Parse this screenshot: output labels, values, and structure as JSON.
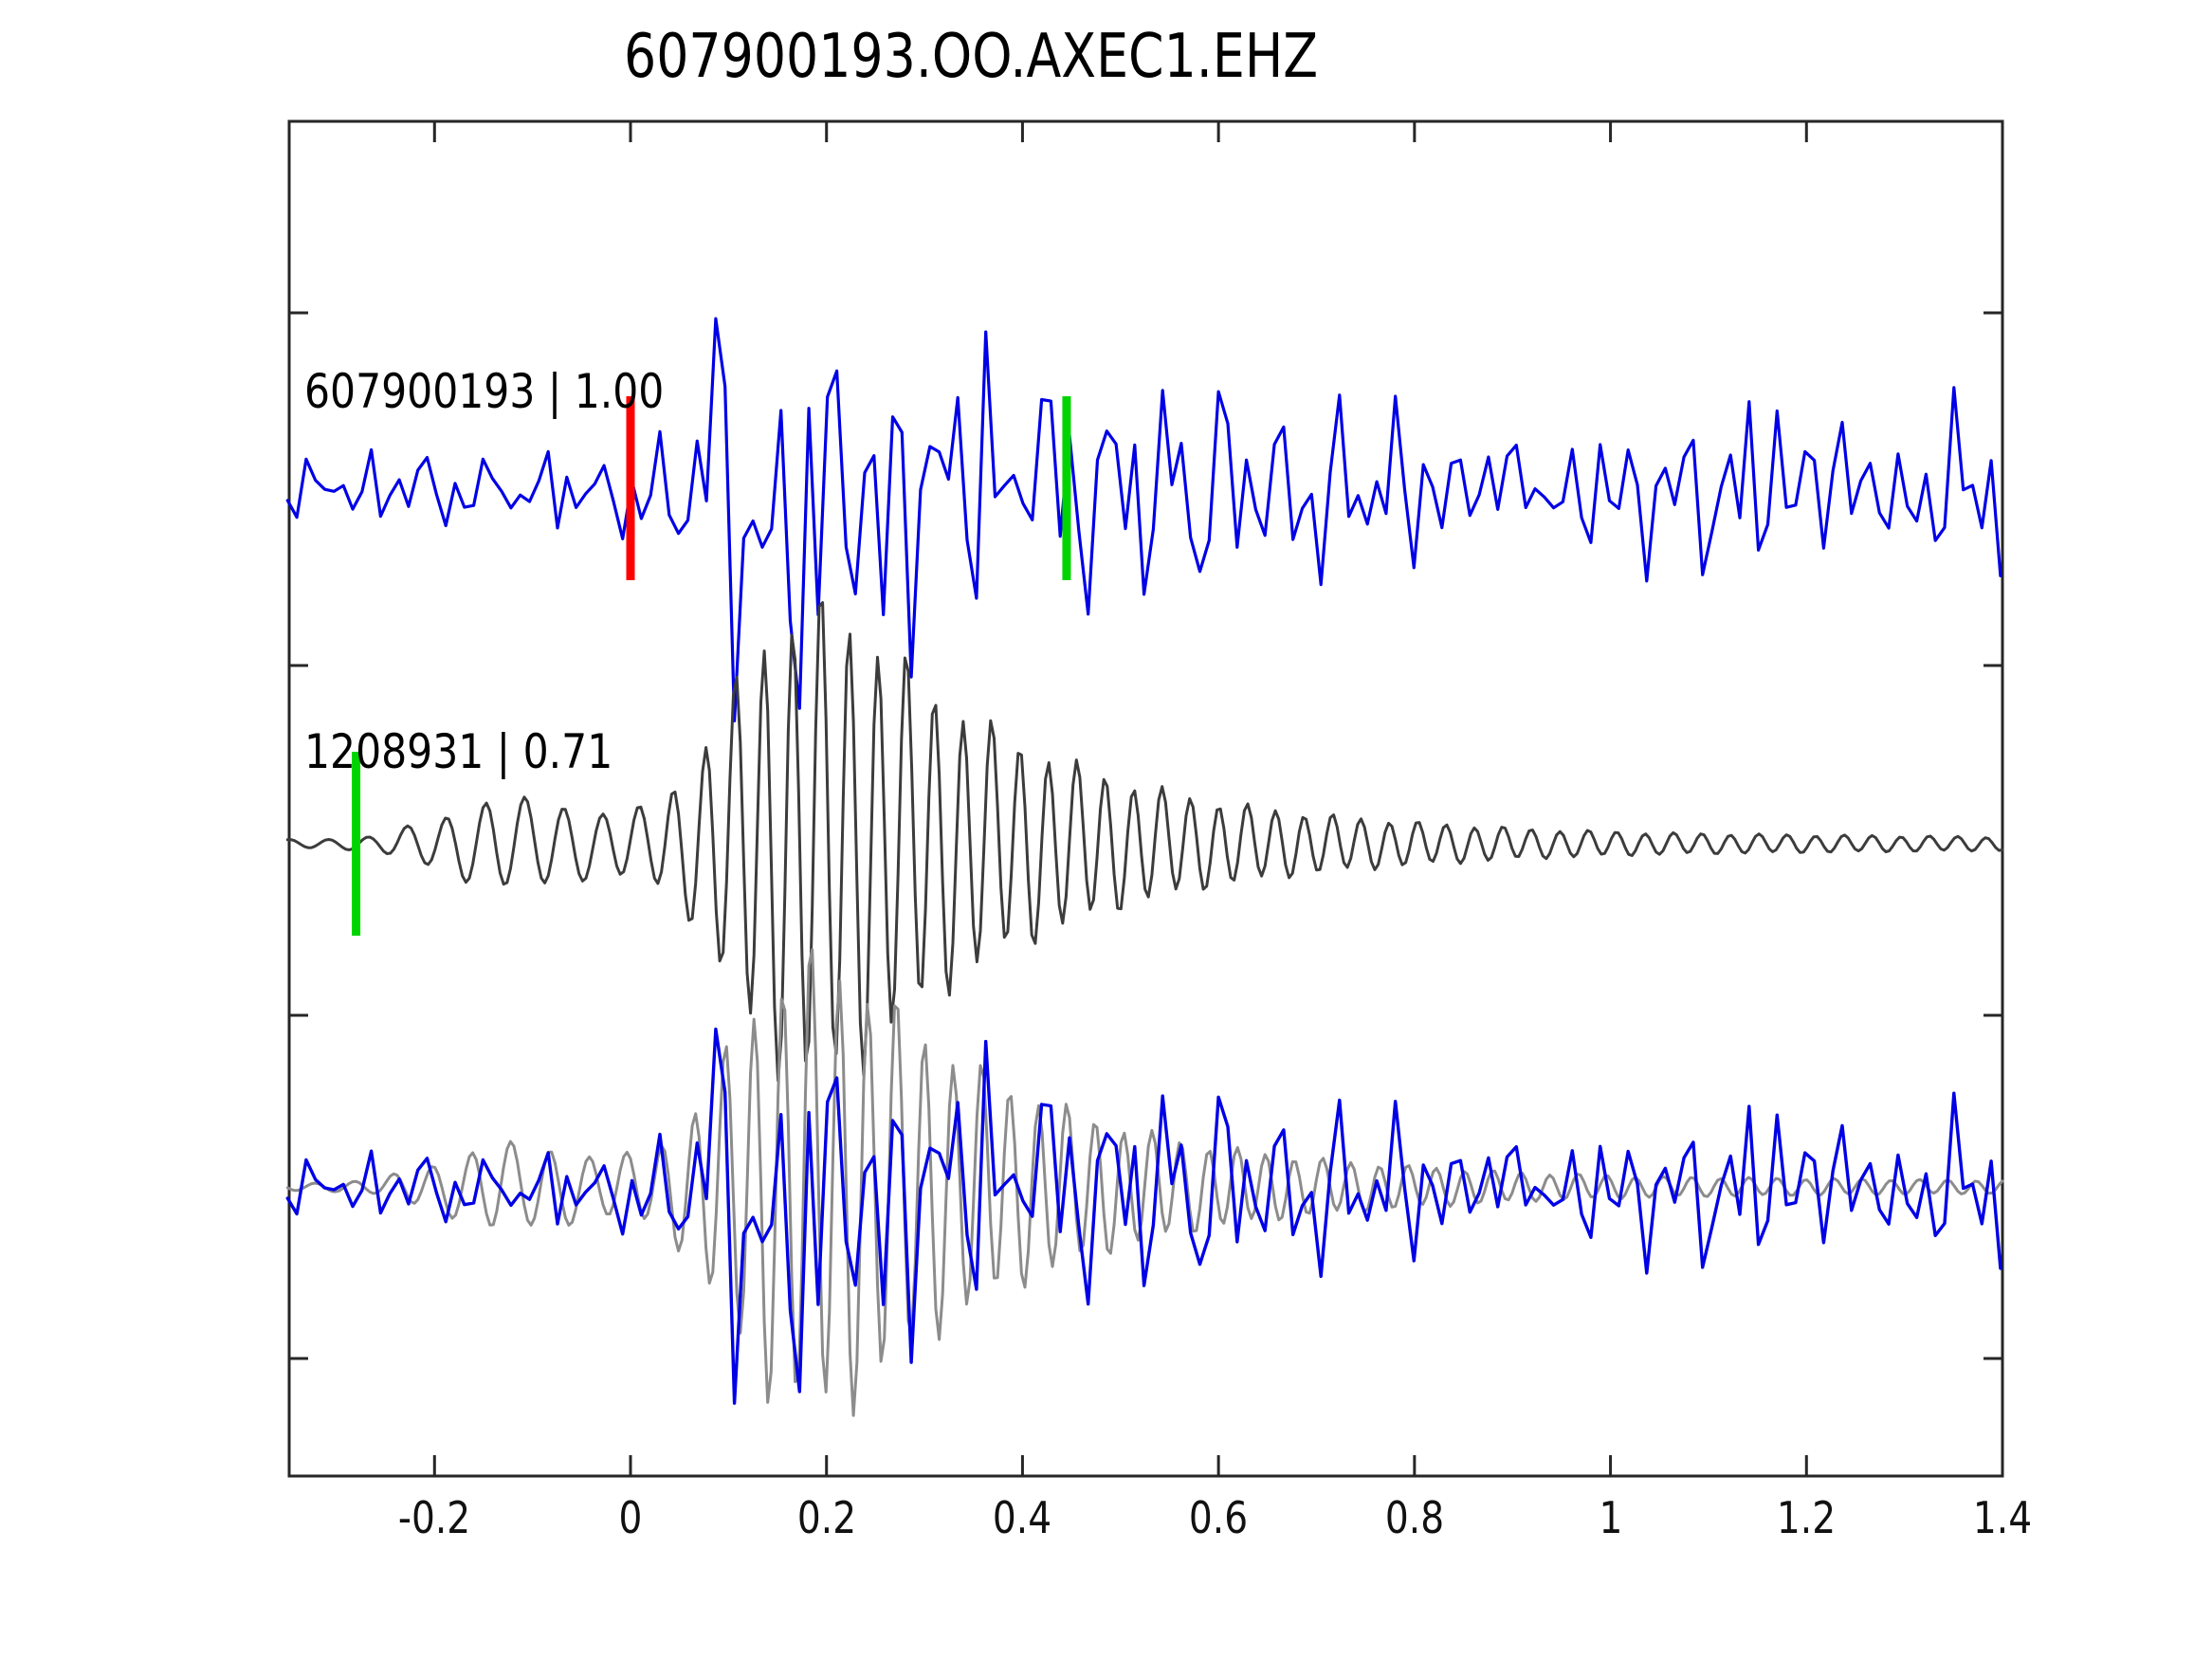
{
  "title": "607900193.OO.AXEC1.EHZ",
  "colors": {
    "trace_blue": "#0000e6",
    "trace_dark": "#3c3c3c",
    "trace_gray": "#8c8c8c",
    "pick_red": "#ff0000",
    "pick_green": "#00d400",
    "frame": "#262626",
    "text": "#000000"
  },
  "chart_data": {
    "type": "line",
    "subtype": "seismogram-cross-correlation",
    "title": "607900193.OO.AXEC1.EHZ",
    "x_axis": {
      "range": [
        -0.35,
        1.401
      ],
      "ticks": [
        -0.2,
        0,
        0.2,
        0.4,
        0.6,
        0.8,
        1,
        1.2,
        1.4
      ],
      "tick_labels": [
        "-0.2",
        "0",
        "0.2",
        "0.4",
        "0.6",
        "0.8",
        "1",
        "1.2",
        "1.4"
      ],
      "grid": false
    },
    "y_axis": {
      "labels": [],
      "note": "three stacked traces, unlabeled minor ticks between rows"
    },
    "trace_labels": [
      {
        "text": "607900193 | 1.00",
        "event_id": "607900193",
        "correlation": "1.00"
      },
      {
        "text": "1208931 | 0.71",
        "event_id": "1208931",
        "correlation": "0.71"
      }
    ],
    "traces": [
      {
        "name": "event-607900193-waveform",
        "row": 0,
        "kind": "noise",
        "color": "trace_blue",
        "width": 3.2,
        "dt": 0.0095,
        "seed": 1337,
        "scale": 1.0,
        "envelope": [
          [
            -0.35,
            0.18
          ],
          [
            -0.25,
            0.19
          ],
          [
            -0.15,
            0.16
          ],
          [
            -0.05,
            0.17
          ],
          [
            0.0,
            0.18
          ],
          [
            0.03,
            0.3
          ],
          [
            0.06,
            0.55
          ],
          [
            0.1,
            0.8
          ],
          [
            0.15,
            0.95
          ],
          [
            0.19,
            1.0
          ],
          [
            0.24,
            0.88
          ],
          [
            0.3,
            0.66
          ],
          [
            0.38,
            0.56
          ],
          [
            0.45,
            0.48
          ],
          [
            0.53,
            0.44
          ],
          [
            0.6,
            0.54
          ],
          [
            0.65,
            0.44
          ],
          [
            0.75,
            0.38
          ],
          [
            0.88,
            0.38
          ],
          [
            1.0,
            0.34
          ],
          [
            1.15,
            0.38
          ],
          [
            1.3,
            0.4
          ],
          [
            1.4,
            0.36
          ]
        ]
      },
      {
        "name": "event-1208931-waveform",
        "row": 1,
        "kind": "spindle",
        "color": "trace_dark",
        "width": 3.0,
        "dt": 0.0035,
        "phase0": 0.7,
        "scale": 1.0,
        "envelope": [
          [
            -0.35,
            0.016
          ],
          [
            -0.3,
            0.02
          ],
          [
            -0.26,
            0.032
          ],
          [
            -0.2,
            0.1
          ],
          [
            -0.14,
            0.19
          ],
          [
            -0.08,
            0.17
          ],
          [
            -0.03,
            0.13
          ],
          [
            0.02,
            0.15
          ],
          [
            0.06,
            0.3
          ],
          [
            0.1,
            0.6
          ],
          [
            0.14,
            0.88
          ],
          [
            0.18,
            1.0
          ],
          [
            0.22,
            0.95
          ],
          [
            0.27,
            0.78
          ],
          [
            0.32,
            0.6
          ],
          [
            0.38,
            0.45
          ],
          [
            0.45,
            0.33
          ],
          [
            0.52,
            0.24
          ],
          [
            0.6,
            0.17
          ],
          [
            0.7,
            0.12
          ],
          [
            0.8,
            0.088
          ],
          [
            0.92,
            0.06
          ],
          [
            1.05,
            0.044
          ],
          [
            1.2,
            0.036
          ],
          [
            1.4,
            0.028
          ]
        ]
      },
      {
        "name": "overlay-1208931-waveform",
        "row": 2,
        "kind": "spindle",
        "color": "trace_gray",
        "width": 3.0,
        "dt": 0.0035,
        "phase0": 2.9,
        "scale": 0.95,
        "envelope": [
          [
            -0.35,
            0.016
          ],
          [
            -0.3,
            0.02
          ],
          [
            -0.26,
            0.032
          ],
          [
            -0.2,
            0.1
          ],
          [
            -0.14,
            0.19
          ],
          [
            -0.08,
            0.17
          ],
          [
            -0.03,
            0.13
          ],
          [
            0.02,
            0.15
          ],
          [
            0.06,
            0.3
          ],
          [
            0.1,
            0.6
          ],
          [
            0.14,
            0.88
          ],
          [
            0.18,
            1.0
          ],
          [
            0.22,
            0.95
          ],
          [
            0.27,
            0.78
          ],
          [
            0.32,
            0.6
          ],
          [
            0.38,
            0.45
          ],
          [
            0.45,
            0.33
          ],
          [
            0.52,
            0.24
          ],
          [
            0.6,
            0.17
          ],
          [
            0.7,
            0.12
          ],
          [
            0.8,
            0.088
          ],
          [
            0.92,
            0.06
          ],
          [
            1.05,
            0.044
          ],
          [
            1.2,
            0.036
          ],
          [
            1.4,
            0.028
          ]
        ]
      },
      {
        "name": "overlay-607900193-waveform",
        "row": 2,
        "kind": "noise",
        "color": "trace_blue",
        "width": 3.4,
        "dt": 0.0095,
        "seed": 1337,
        "scale": 0.93,
        "envelope": [
          [
            -0.35,
            0.18
          ],
          [
            -0.25,
            0.19
          ],
          [
            -0.15,
            0.16
          ],
          [
            -0.05,
            0.17
          ],
          [
            0.0,
            0.18
          ],
          [
            0.03,
            0.3
          ],
          [
            0.06,
            0.55
          ],
          [
            0.1,
            0.8
          ],
          [
            0.15,
            0.95
          ],
          [
            0.19,
            1.0
          ],
          [
            0.24,
            0.88
          ],
          [
            0.3,
            0.66
          ],
          [
            0.38,
            0.56
          ],
          [
            0.45,
            0.48
          ],
          [
            0.53,
            0.44
          ],
          [
            0.6,
            0.54
          ],
          [
            0.65,
            0.44
          ],
          [
            0.75,
            0.38
          ],
          [
            0.88,
            0.38
          ],
          [
            1.0,
            0.34
          ],
          [
            1.15,
            0.38
          ],
          [
            1.3,
            0.4
          ],
          [
            1.4,
            0.36
          ]
        ]
      }
    ],
    "markers": [
      {
        "name": "pick-marker-red",
        "trace_row": 0,
        "t": 0.0,
        "color": "pick_red"
      },
      {
        "name": "pick-marker-green-top",
        "trace_row": 0,
        "t": 0.445,
        "color": "pick_green"
      },
      {
        "name": "pick-marker-green-middle",
        "trace_row": 1,
        "t": -0.28,
        "color": "pick_green"
      }
    ]
  }
}
